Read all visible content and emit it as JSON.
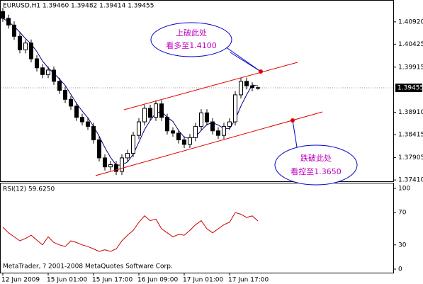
{
  "chart_data": {
    "type": "candlestick",
    "title": "EURUSD,H1 1.39460 1.39482 1.39414 1.39455",
    "categories": [
      "12 Jun 2009",
      null,
      null,
      null,
      null,
      null,
      null,
      null,
      "15 Jun 01:00",
      null,
      null,
      null,
      null,
      null,
      null,
      null,
      "15 Jun 17:00",
      null,
      null,
      null,
      null,
      null,
      null,
      null,
      "16 Jun 09:00",
      null,
      null,
      null,
      null,
      null,
      null,
      null,
      "17 Jun 01:00",
      null,
      null,
      null,
      null,
      null,
      null,
      null,
      "17 Jun 17:00",
      null,
      null,
      null,
      null,
      null
    ],
    "open": [
      1.4115,
      1.41,
      1.4085,
      1.406,
      1.403,
      1.4045,
      1.401,
      1.399,
      1.3975,
      1.3985,
      1.396,
      1.394,
      1.392,
      1.3905,
      1.388,
      1.387,
      1.386,
      1.383,
      1.379,
      1.377,
      1.3775,
      1.376,
      1.379,
      1.38,
      1.384,
      1.387,
      1.39,
      1.388,
      1.391,
      1.388,
      1.385,
      1.3845,
      1.383,
      1.382,
      1.3835,
      1.386,
      1.389,
      1.387,
      1.385,
      1.384,
      1.386,
      1.387,
      1.393,
      1.396,
      1.395,
      1.3946
    ],
    "high": [
      1.4123,
      1.4108,
      1.4093,
      1.4068,
      1.4053,
      1.4053,
      1.4018,
      1.3998,
      1.3993,
      1.3993,
      1.3968,
      1.3948,
      1.3928,
      1.3913,
      1.3888,
      1.3878,
      1.3868,
      1.3838,
      1.3798,
      1.3783,
      1.3783,
      1.3798,
      1.3808,
      1.3848,
      1.3878,
      1.3908,
      1.3908,
      1.3918,
      1.3918,
      1.3888,
      1.3858,
      1.3853,
      1.3838,
      1.3843,
      1.3868,
      1.3898,
      1.3898,
      1.3878,
      1.3858,
      1.3868,
      1.3878,
      1.3938,
      1.3968,
      1.3968,
      1.3958,
      1.39482
    ],
    "low": [
      1.4092,
      1.4077,
      1.4052,
      1.4022,
      1.4022,
      1.4002,
      1.3982,
      1.3967,
      1.3967,
      1.3952,
      1.3932,
      1.3912,
      1.3897,
      1.3872,
      1.3862,
      1.3852,
      1.3822,
      1.3782,
      1.3762,
      1.3762,
      1.3752,
      1.3752,
      1.3782,
      1.3792,
      1.3832,
      1.3862,
      1.3872,
      1.3872,
      1.3872,
      1.3842,
      1.3837,
      1.3822,
      1.3812,
      1.3812,
      1.3827,
      1.3852,
      1.3862,
      1.3842,
      1.3832,
      1.3832,
      1.3852,
      1.3862,
      1.3922,
      1.3942,
      1.3938,
      1.39414
    ],
    "close": [
      1.41,
      1.4085,
      1.406,
      1.403,
      1.4045,
      1.401,
      1.399,
      1.3975,
      1.3985,
      1.396,
      1.394,
      1.392,
      1.3905,
      1.388,
      1.387,
      1.386,
      1.383,
      1.379,
      1.377,
      1.3775,
      1.376,
      1.379,
      1.38,
      1.384,
      1.387,
      1.39,
      1.388,
      1.391,
      1.388,
      1.385,
      1.3845,
      1.383,
      1.382,
      1.3835,
      1.386,
      1.389,
      1.387,
      1.385,
      1.384,
      1.386,
      1.387,
      1.393,
      1.396,
      1.395,
      1.3946,
      1.39455
    ],
    "ma": {
      "color": "#000080",
      "values": [
        1.41,
        1.4092,
        1.4082,
        1.4069,
        1.4055,
        1.4043,
        1.4026,
        1.4005,
        1.399,
        1.3978,
        1.3965,
        1.3951,
        1.3931,
        1.3911,
        1.3894,
        1.3879,
        1.386,
        1.3838,
        1.3813,
        1.3791,
        1.3774,
        1.3774,
        1.3781,
        1.3798,
        1.3825,
        1.3853,
        1.3873,
        1.389,
        1.3893,
        1.388,
        1.3871,
        1.3851,
        1.3836,
        1.3833,
        1.3837,
        1.3851,
        1.3864,
        1.3868,
        1.3863,
        1.3855,
        1.3855,
        1.3875,
        1.3905,
        1.393,
        1.3952,
        1.395
      ]
    },
    "ylim": [
      1.3738,
      1.4139
    ],
    "yticks": [
      {
        "value": 1.4092,
        "label": "1.40920"
      },
      1.40425,
      1.39915,
      {
        "value": 1.3891,
        "label": "1.38910"
      },
      1.38415,
      1.37905,
      {
        "value": 1.3741,
        "label": "1.37410"
      }
    ],
    "current_price": 1.39455,
    "annotations": [
      "上破此处",
      "看多至1.4100",
      "跌破此处",
      "看控至1.3650"
    ],
    "rsi": {
      "type": "line",
      "title": "RSI(12) 59.6250",
      "color": "#cc0000",
      "values": [
        52,
        45,
        40,
        35,
        38,
        42,
        36,
        30,
        40,
        33,
        30,
        28,
        35,
        33,
        30,
        28,
        25,
        22,
        24,
        22,
        25,
        35,
        42,
        48,
        58,
        66,
        60,
        62,
        50,
        45,
        40,
        43,
        42,
        48,
        55,
        60,
        50,
        45,
        50,
        55,
        58,
        70,
        68,
        64,
        66,
        59.625
      ],
      "ylim": [
        0,
        100
      ],
      "yticks": [
        100,
        70,
        30,
        0
      ]
    },
    "footer": "MetaTrader, ? 2001-2008 MetaQuotes Software Corp."
  }
}
